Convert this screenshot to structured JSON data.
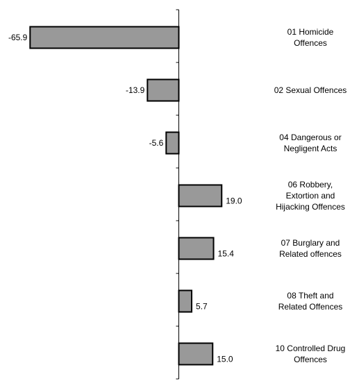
{
  "chart_data": {
    "type": "bar",
    "orientation": "horizontal",
    "categories": [
      [
        "01 Homicide",
        "Offences"
      ],
      [
        "02 Sexual Offences"
      ],
      [
        "04 Dangerous or",
        "Negligent Acts"
      ],
      [
        "06 Robbery,",
        "Extortion and",
        "Hijacking Offences"
      ],
      [
        "07 Burglary and",
        "Related offences"
      ],
      [
        "08 Theft and",
        "Related Offences"
      ],
      [
        "10 Controlled Drug",
        "Offences"
      ]
    ],
    "values": [
      -65.9,
      -13.9,
      -5.6,
      19.0,
      15.4,
      5.7,
      15.0
    ],
    "value_labels": [
      "-65.9",
      "-13.9",
      "-5.6",
      "19.0",
      "15.4",
      "5.7",
      "15.0"
    ],
    "xlim": [
      -80,
      80
    ],
    "title": "",
    "xlabel": "",
    "ylabel": "",
    "grid": false,
    "legend": "none",
    "bar_color": "#999999",
    "bar_edge_color": "#000000"
  }
}
